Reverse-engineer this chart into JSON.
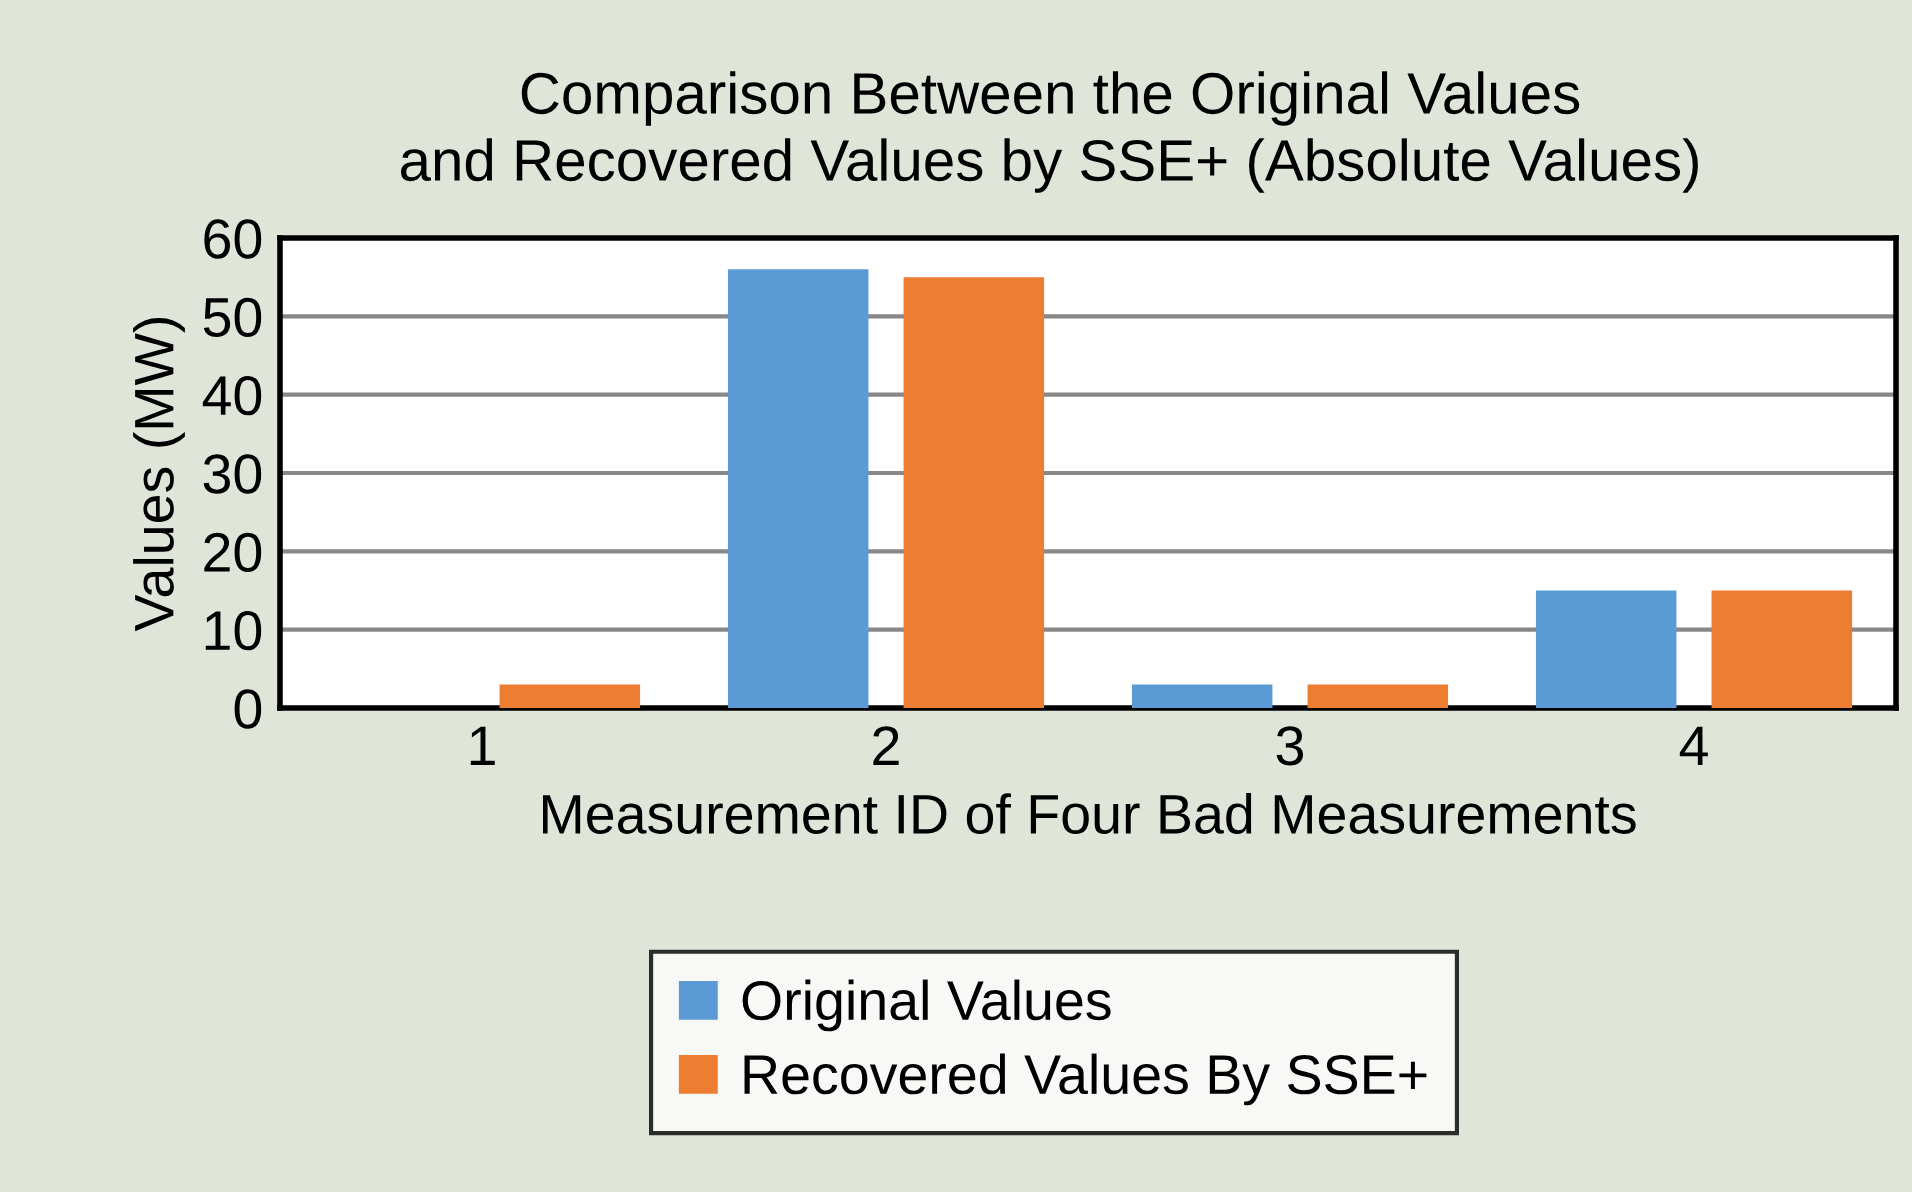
{
  "chart_data": {
    "type": "bar",
    "title": "Comparison Between the Original Values\nand Recovered Values by SSE+ (Absolute Values)",
    "xlabel": "Measurement ID of Four Bad Measurements",
    "ylabel": "Values (MW)",
    "categories": [
      "1",
      "2",
      "3",
      "4"
    ],
    "series": [
      {
        "name": "Original Values",
        "color": "#5b9bd5",
        "values": [
          0,
          56,
          3,
          15
        ]
      },
      {
        "name": "Recovered Values By SSE+",
        "color": "#ed7d31",
        "values": [
          3,
          55,
          3,
          15
        ]
      }
    ],
    "ylim": [
      0,
      60
    ],
    "yticks": [
      0,
      10,
      20,
      30,
      40,
      50,
      60
    ],
    "grid": "y",
    "legend": "bottom"
  }
}
